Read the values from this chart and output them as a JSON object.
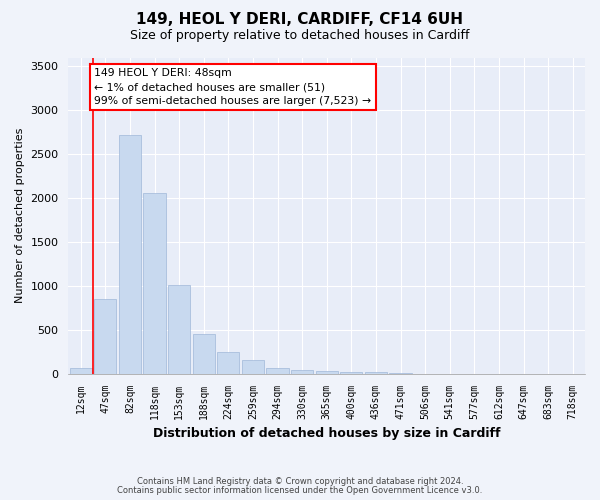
{
  "title_line1": "149, HEOL Y DERI, CARDIFF, CF14 6UH",
  "title_line2": "Size of property relative to detached houses in Cardiff",
  "xlabel": "Distribution of detached houses by size in Cardiff",
  "ylabel": "Number of detached properties",
  "categories": [
    "12sqm",
    "47sqm",
    "82sqm",
    "118sqm",
    "153sqm",
    "188sqm",
    "224sqm",
    "259sqm",
    "294sqm",
    "330sqm",
    "365sqm",
    "400sqm",
    "436sqm",
    "471sqm",
    "506sqm",
    "541sqm",
    "577sqm",
    "612sqm",
    "647sqm",
    "683sqm",
    "718sqm"
  ],
  "values": [
    60,
    850,
    2720,
    2060,
    1010,
    450,
    250,
    160,
    65,
    40,
    35,
    20,
    15,
    10,
    0,
    0,
    0,
    0,
    0,
    0,
    0
  ],
  "bar_color": "#c8d9ef",
  "bar_edge_color": "#a0b8d8",
  "annotation_title": "149 HEOL Y DERI: 48sqm",
  "annotation_line2": "← 1% of detached houses are smaller (51)",
  "annotation_line3": "99% of semi-detached houses are larger (7,523) →",
  "ylim": [
    0,
    3600
  ],
  "yticks": [
    0,
    500,
    1000,
    1500,
    2000,
    2500,
    3000,
    3500
  ],
  "footer_line1": "Contains HM Land Registry data © Crown copyright and database right 2024.",
  "footer_line2": "Contains public sector information licensed under the Open Government Licence v3.0.",
  "bg_color": "#f0f3fa",
  "plot_bg_color": "#e8edf8"
}
